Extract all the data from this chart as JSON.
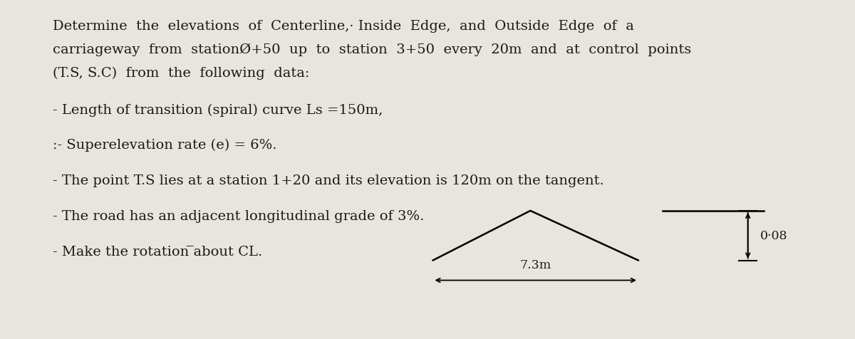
{
  "background_color": "#e8e4de",
  "text_color": "#1a1a1a",
  "line1": "Determine  the  elevations  of  Centerline,· Inside  Edge,  and  Outside  Edge  of  a",
  "line2": "carriageway  from  stationØ+50  up  to  station  3+50  every  20m  and  at  control  points",
  "line3": "(T.S, S.C)  from  the  following  data:",
  "bullet1": "- Length of transition (spiral) curve Ls =150m,",
  "bullet2": ":- Superelevation rate (e) = 6%.",
  "bullet3": "- The point T.S lies at a station 1+20 and its elevation is 120m on the tangent.",
  "bullet4": "- The road has an adjacent longitudinal grade of 3%.",
  "bullet5": "- Make the rotation ̅about CL.",
  "diagram_label_width": "7.3m",
  "diagram_label_elev": "0·08",
  "font_size": 14.0,
  "font_size_diag": 12.5
}
